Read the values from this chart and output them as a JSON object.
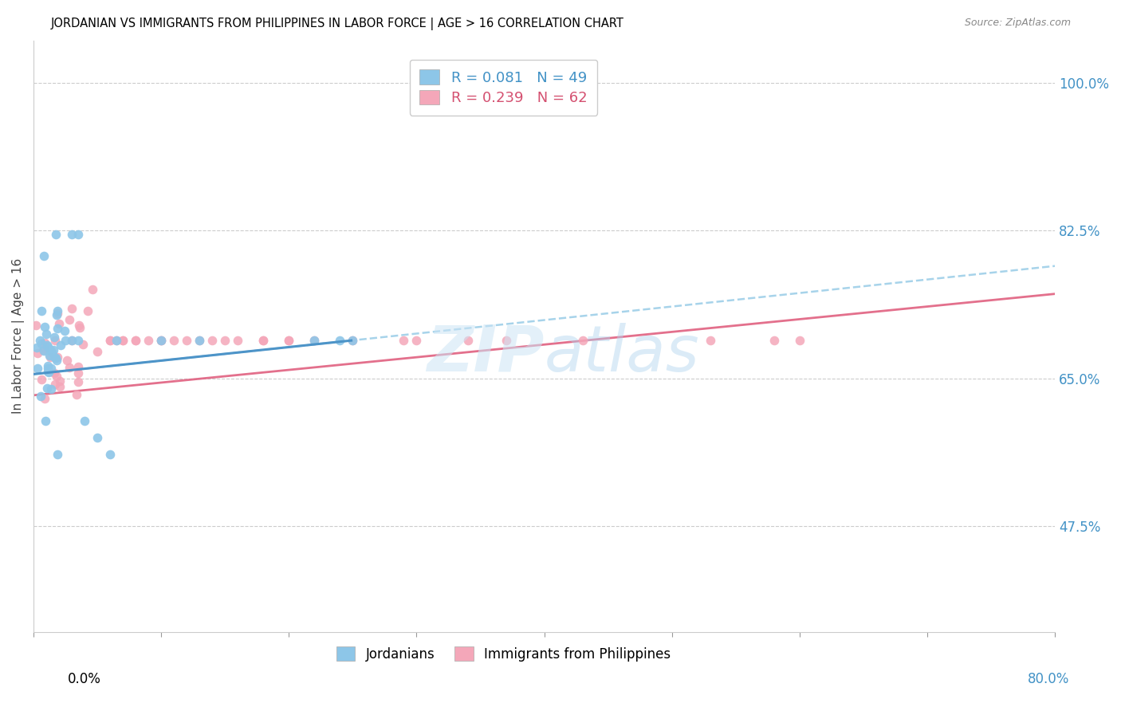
{
  "title": "JORDANIAN VS IMMIGRANTS FROM PHILIPPINES IN LABOR FORCE | AGE > 16 CORRELATION CHART",
  "source": "Source: ZipAtlas.com",
  "ylabel": "In Labor Force | Age > 16",
  "ytick_values": [
    1.0,
    0.825,
    0.65,
    0.475
  ],
  "ytick_labels": [
    "100.0%",
    "82.5%",
    "65.0%",
    "47.5%"
  ],
  "xmin": 0.0,
  "xmax": 0.8,
  "ymin": 0.35,
  "ymax": 1.05,
  "blue_color": "#8dc6e8",
  "pink_color": "#f4a7b9",
  "blue_line_color": "#4d94c8",
  "blue_dash_color": "#9ecfe8",
  "pink_line_color": "#e06080",
  "legend_label_blue": "R = 0.081   N = 49",
  "legend_label_pink": "R = 0.239   N = 62",
  "legend_name_blue": "Jordanians",
  "legend_name_pink": "Immigrants from Philippines",
  "watermark": "ZIPatlas",
  "text_color_blue": "#4292c6",
  "text_color_pink": "#d45070"
}
